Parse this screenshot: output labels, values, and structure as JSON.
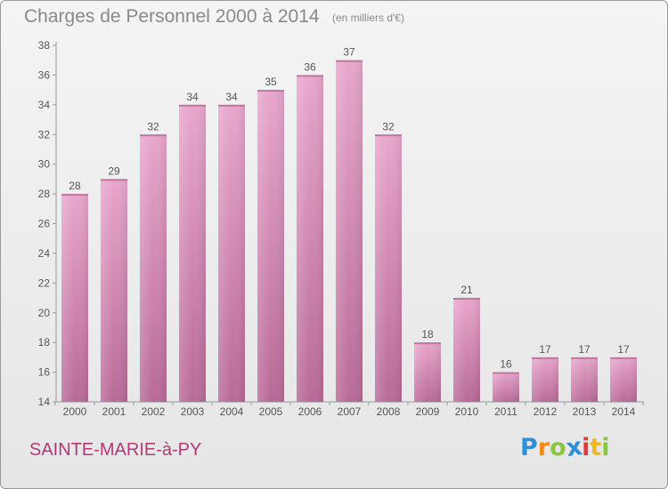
{
  "title": "Charges de Personnel 2000 à 2014",
  "subtitle": "(en milliers d'€)",
  "commune": "SAINTE-MARIE-à-PY",
  "logo": {
    "letters": [
      "P",
      "r",
      "o",
      "x",
      "i",
      "t",
      "i"
    ],
    "colors": [
      "#2e8fd8",
      "#f08a1c",
      "#8cc63f",
      "#2e8fd8",
      "#e03c3c",
      "#f0b81c",
      "#8cc63f"
    ]
  },
  "colors": {
    "bar_top": "#e8a6cc",
    "bar_bottom": "#b86a98",
    "text": "#8a8a8a",
    "commune": "#b03a78"
  },
  "chart_data": {
    "type": "bar",
    "categories": [
      "2000",
      "2001",
      "2002",
      "2003",
      "2004",
      "2005",
      "2006",
      "2007",
      "2008",
      "2009",
      "2010",
      "2011",
      "2012",
      "2013",
      "2014"
    ],
    "values": [
      28,
      29,
      32,
      34,
      34,
      35,
      36,
      37,
      32,
      18,
      21,
      16,
      17,
      17,
      17
    ],
    "ylim": [
      14,
      38
    ],
    "yticks": [
      14,
      16,
      18,
      20,
      22,
      24,
      26,
      28,
      30,
      32,
      34,
      36,
      38
    ],
    "grid": false
  }
}
